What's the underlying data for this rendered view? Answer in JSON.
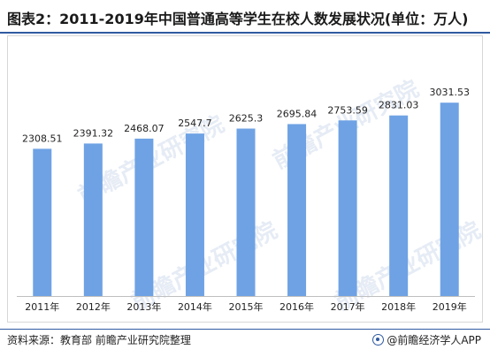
{
  "title": "图表2：2011-2019年中国普通高等学生在校人数发展状况(单位：万人)",
  "watermark_text": "前瞻产业研究院",
  "source": "资料来源：教育部 前瞻产业研究院整理",
  "brand": "@前瞻经济学人APP",
  "colors": {
    "bar": "#6ea2e4",
    "accent": "#2f5aa0"
  },
  "chart_data": {
    "type": "bar",
    "title": "图表2：2011-2019年中国普通高等学生在校人数发展状况(单位：万人)",
    "xlabel": "",
    "ylabel": "",
    "categories": [
      "2011年",
      "2012年",
      "2013年",
      "2014年",
      "2015年",
      "2016年",
      "2017年",
      "2018年",
      "2019年"
    ],
    "values": [
      2308.51,
      2391.32,
      2468.07,
      2547.7,
      2625.3,
      2695.84,
      2753.59,
      2831.03,
      3031.53
    ],
    "value_labels": [
      "2308.51",
      "2391.32",
      "2468.07",
      "2547.7",
      "2625.3",
      "2695.84",
      "2753.59",
      "2831.03",
      "3031.53"
    ],
    "ylim": [
      0,
      3450
    ],
    "grid": false,
    "legend": "none"
  }
}
